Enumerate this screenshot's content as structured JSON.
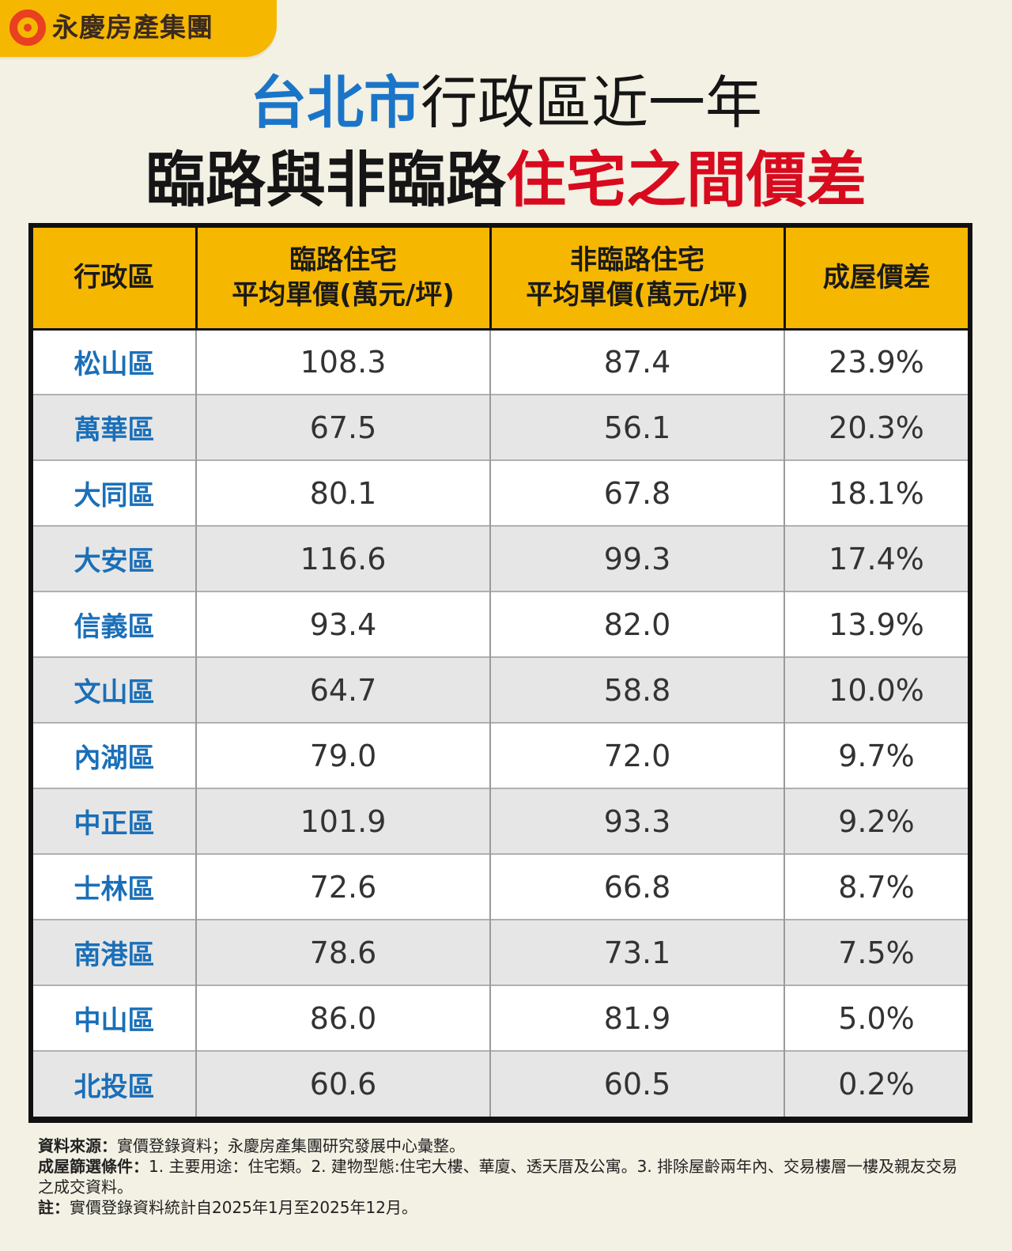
{
  "brand": {
    "name": "永慶房產集團"
  },
  "title": {
    "line1_blue": "台北市",
    "line1_dark": "行政區近一年",
    "line2_dark": "臨路與非臨路",
    "line2_red": "住宅之間價差"
  },
  "table": {
    "headers": {
      "district": "行政區",
      "road_line1": "臨路住宅",
      "road_line2": "平均單價(萬元/坪)",
      "nonroad_line1": "非臨路住宅",
      "nonroad_line2": "平均單價(萬元/坪)",
      "diff": "成屋價差"
    },
    "rows": [
      {
        "district": "松山區",
        "road": "108.3",
        "nonroad": "87.4",
        "diff": "23.9%"
      },
      {
        "district": "萬華區",
        "road": "67.5",
        "nonroad": "56.1",
        "diff": "20.3%"
      },
      {
        "district": "大同區",
        "road": "80.1",
        "nonroad": "67.8",
        "diff": "18.1%"
      },
      {
        "district": "大安區",
        "road": "116.6",
        "nonroad": "99.3",
        "diff": "17.4%"
      },
      {
        "district": "信義區",
        "road": "93.4",
        "nonroad": "82.0",
        "diff": "13.9%"
      },
      {
        "district": "文山區",
        "road": "64.7",
        "nonroad": "58.8",
        "diff": "10.0%"
      },
      {
        "district": "內湖區",
        "road": "79.0",
        "nonroad": "72.0",
        "diff": "9.7%"
      },
      {
        "district": "中正區",
        "road": "101.9",
        "nonroad": "93.3",
        "diff": "9.2%"
      },
      {
        "district": "士林區",
        "road": "72.6",
        "nonroad": "66.8",
        "diff": "8.7%"
      },
      {
        "district": "南港區",
        "road": "78.6",
        "nonroad": "73.1",
        "diff": "7.5%"
      },
      {
        "district": "中山區",
        "road": "86.0",
        "nonroad": "81.9",
        "diff": "5.0%"
      },
      {
        "district": "北投區",
        "road": "60.6",
        "nonroad": "60.5",
        "diff": "0.2%"
      }
    ]
  },
  "footer": {
    "source_label": "資料來源：",
    "source_text": "實價登錄資料；永慶房產集團研究發展中心彙整。",
    "criteria_label": "成屋篩選條件：",
    "criteria_text": "1. 主要用途：住宅類。2. 建物型態:住宅大樓、華廈、透天厝及公寓。3. 排除屋齡兩年內、交易樓層一樓及親友交易之成交資料。",
    "note_label": "註：",
    "note_text": "實價登錄資料統計自2025年1月至2025年12月。"
  },
  "colors": {
    "accent_yellow": "#f6b700",
    "title_blue": "#1a75c8",
    "title_red": "#d80a1e",
    "district_blue": "#1a6fb8"
  }
}
